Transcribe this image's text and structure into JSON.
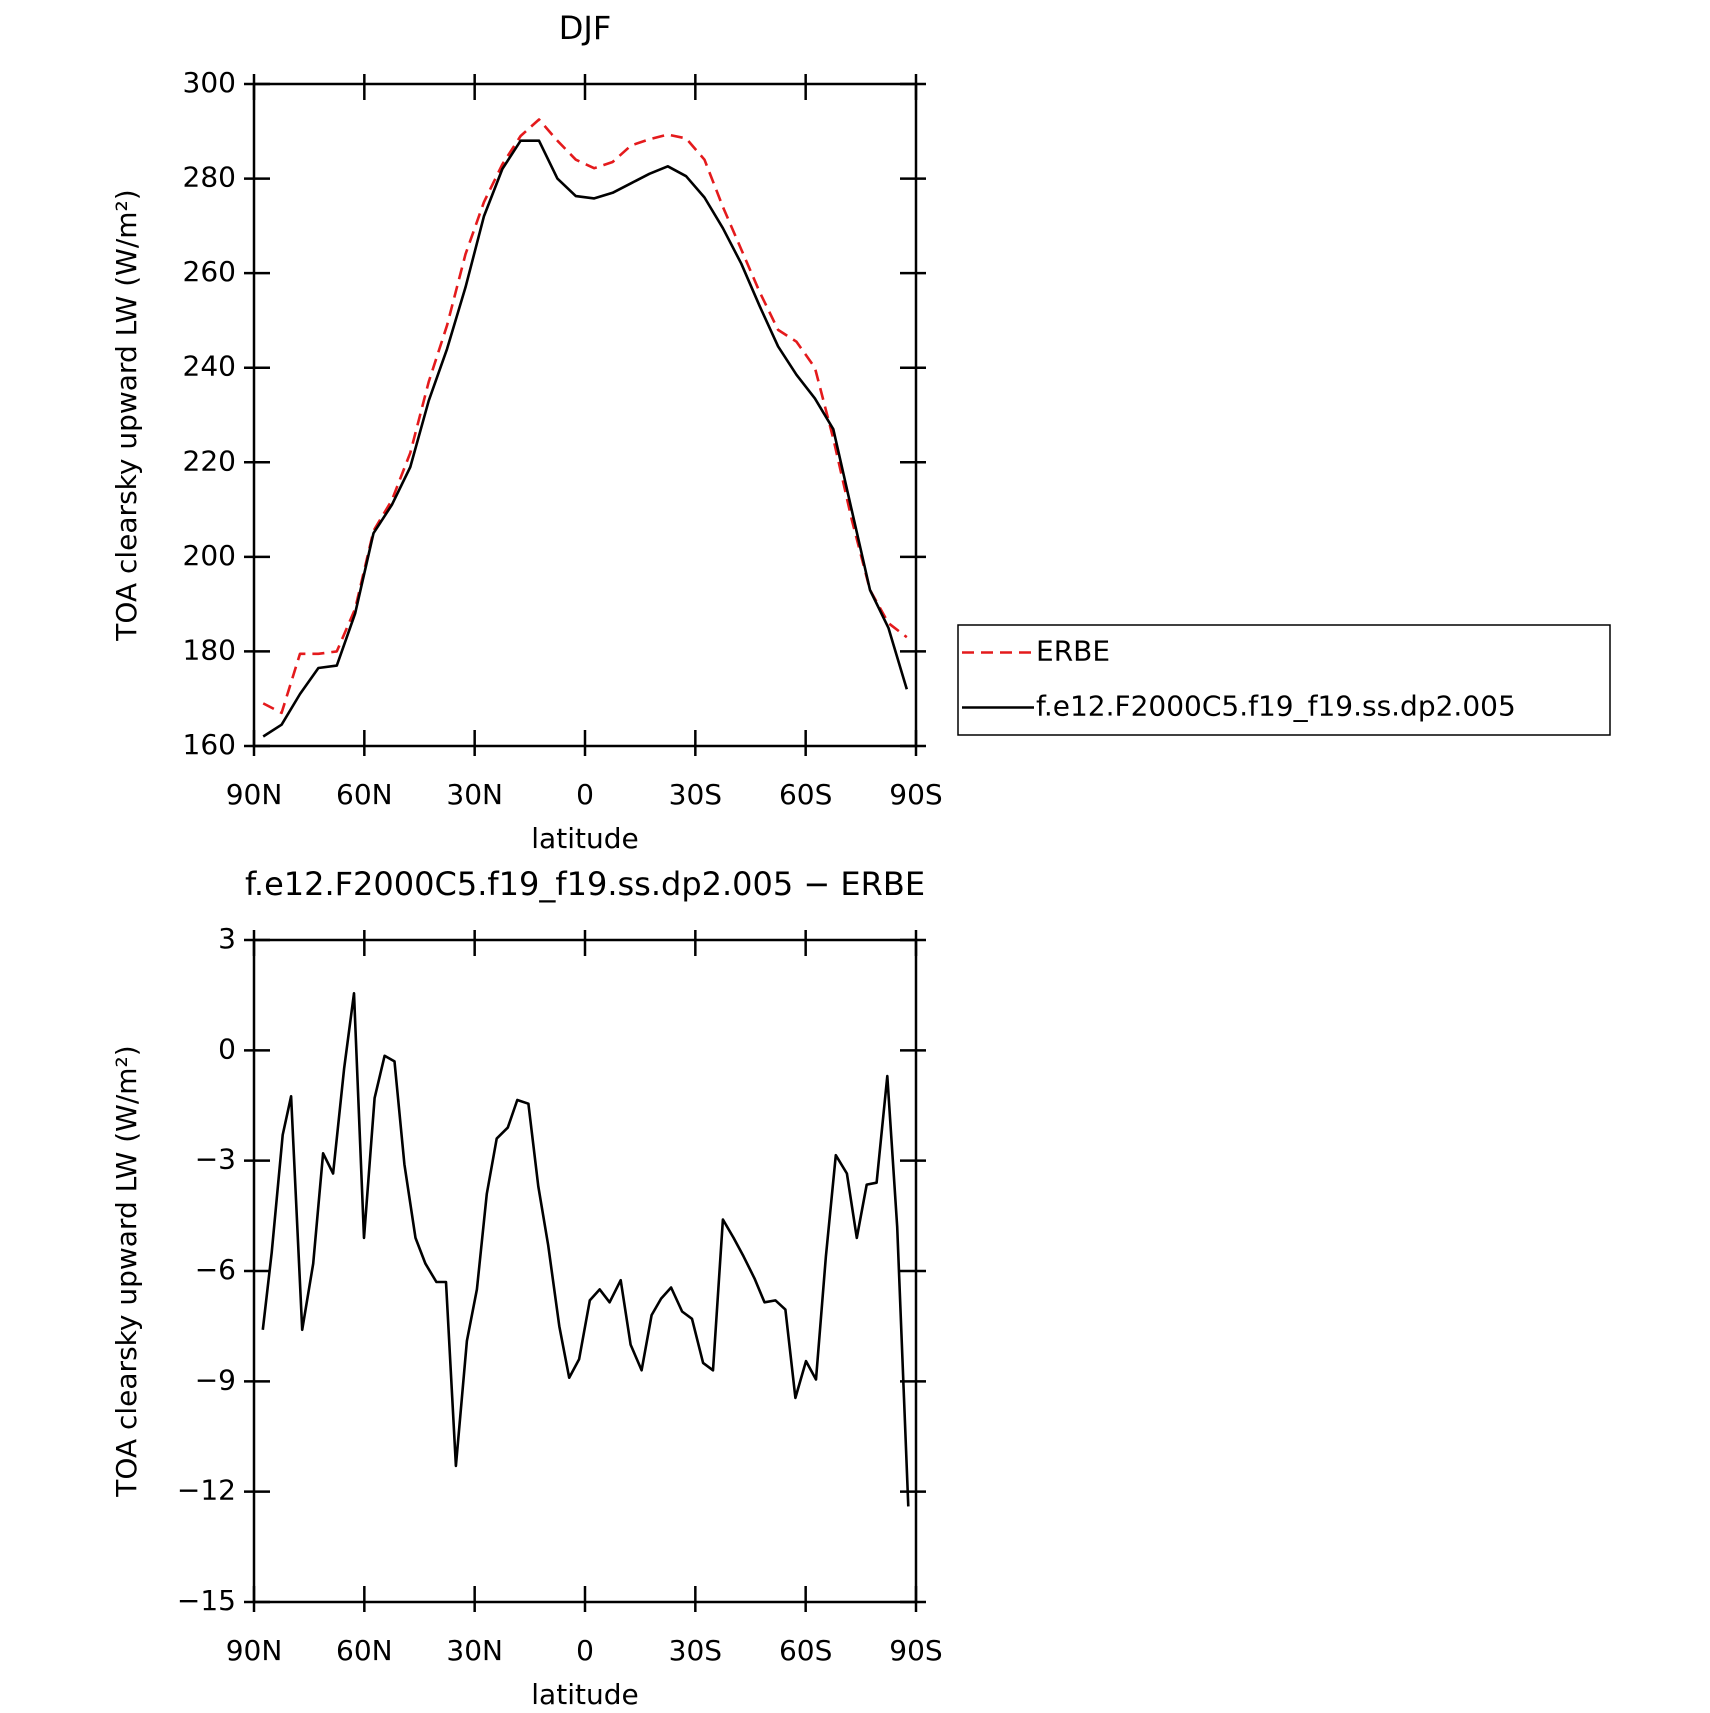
{
  "chart_data": [
    {
      "type": "line",
      "title": "DJF",
      "xlabel": "latitude",
      "ylabel": "TOA clearsky upward LW (W/m²)",
      "x": [
        87.5,
        82.5,
        77.5,
        72.5,
        67.5,
        62.5,
        57.5,
        52.5,
        47.5,
        42.5,
        37.5,
        32.5,
        27.5,
        22.5,
        17.5,
        12.5,
        7.5,
        2.5,
        -2.5,
        -7.5,
        -12.5,
        -17.5,
        -22.5,
        -27.5,
        -32.5,
        -37.5,
        -42.5,
        -47.5,
        -52.5,
        -57.5,
        -62.5,
        -67.5,
        -72.5,
        -77.5,
        -82.5,
        -87.5
      ],
      "series": [
        {
          "name": "ERBE",
          "color": "#e41a1c",
          "style": "dashed",
          "values": [
            169,
            167,
            179.5,
            179.5,
            180,
            189,
            205.5,
            212,
            222,
            237,
            249,
            264,
            275,
            283,
            289,
            292.5,
            288,
            284,
            282.2,
            283.5,
            287,
            288.3,
            289.3,
            288.5,
            284,
            274,
            265,
            256,
            248,
            245.5,
            240,
            225,
            208,
            193,
            186,
            183
          ]
        },
        {
          "name": "f.e12.F2000C5.f19_f19.ss.dp2.005",
          "color": "#000000",
          "style": "solid",
          "values": [
            162,
            164.5,
            171,
            176.5,
            177,
            188,
            205,
            211,
            219,
            233,
            244,
            257,
            272,
            282,
            288,
            288,
            280,
            276.3,
            275.8,
            277,
            279,
            281,
            282.6,
            280.5,
            276,
            269.5,
            262,
            253,
            244.5,
            238.5,
            233.5,
            227,
            210,
            193,
            185,
            172
          ]
        }
      ],
      "xlim": [
        90,
        -90
      ],
      "xticks": [
        {
          "value": 90,
          "label": "90N"
        },
        {
          "value": 60,
          "label": "60N"
        },
        {
          "value": 30,
          "label": "30N"
        },
        0,
        {
          "value": -30,
          "label": "30S"
        },
        {
          "value": -60,
          "label": "60S"
        },
        {
          "value": -90,
          "label": "90S"
        }
      ],
      "ylim": [
        160,
        300
      ],
      "yticks": [
        160,
        180,
        200,
        220,
        240,
        260,
        280,
        300
      ],
      "legend": "right"
    },
    {
      "type": "line",
      "title": "f.e12.F2000C5.f19_f19.ss.dp2.005 − ERBE",
      "xlabel": "latitude",
      "ylabel": "TOA clearsky upward LW (W/m²)",
      "x": [
        87.6,
        85.2,
        82.2,
        79.9,
        76.9,
        73.9,
        71.2,
        68.5,
        65.5,
        62.8,
        60.1,
        57.2,
        54.5,
        51.8,
        49.1,
        46.1,
        43.4,
        40.4,
        37.8,
        35.1,
        32.1,
        29.4,
        26.7,
        24.0,
        21.0,
        18.4,
        15.4,
        12.7,
        10.0,
        7.0,
        4.3,
        1.6,
        -1.3,
        -4.0,
        -6.7,
        -9.7,
        -12.4,
        -15.4,
        -18.1,
        -20.7,
        -23.4,
        -26.4,
        -29.1,
        -32.1,
        -34.8,
        -37.5,
        -40.4,
        -43.1,
        -46.1,
        -48.8,
        -51.8,
        -54.5,
        -57.2,
        -60.1,
        -62.8,
        -65.5,
        -68.2,
        -71.2,
        -73.9,
        -76.6,
        -79.3,
        -82.2,
        -84.9,
        -87.9
      ],
      "series": [
        {
          "name": "f.e12.F2000C5.f19_f19.ss.dp2.005 − ERBE",
          "color": "#000000",
          "style": "solid",
          "values": [
            -7.6,
            -5.5,
            -2.3,
            -1.25,
            -7.6,
            -5.8,
            -2.8,
            -3.35,
            -0.5,
            1.55,
            -5.1,
            -1.3,
            -0.15,
            -0.3,
            -3.1,
            -5.1,
            -5.8,
            -6.3,
            -6.3,
            -11.3,
            -7.9,
            -6.5,
            -3.9,
            -2.4,
            -2.1,
            -1.35,
            -1.45,
            -3.7,
            -5.3,
            -7.5,
            -8.9,
            -8.4,
            -6.8,
            -6.5,
            -6.85,
            -6.25,
            -8.0,
            -8.7,
            -7.2,
            -6.75,
            -6.45,
            -7.1,
            -7.3,
            -8.5,
            -8.7,
            -4.6,
            -5.1,
            -5.6,
            -6.2,
            -6.85,
            -6.8,
            -7.05,
            -9.45,
            -8.45,
            -8.95,
            -5.6,
            -2.85,
            -3.35,
            -5.1,
            -3.65,
            -3.6,
            -0.7,
            -4.8,
            -12.4
          ]
        }
      ],
      "xlim": [
        90,
        -90
      ],
      "xticks": [
        {
          "value": 90,
          "label": "90N"
        },
        {
          "value": 60,
          "label": "60N"
        },
        {
          "value": 30,
          "label": "30N"
        },
        0,
        {
          "value": -30,
          "label": "30S"
        },
        {
          "value": -60,
          "label": "60S"
        },
        {
          "value": -90,
          "label": "90S"
        }
      ],
      "ylim": [
        -15,
        3
      ],
      "yticks": [
        {
          "value": -15,
          "label": "−15"
        },
        {
          "value": -12,
          "label": "−12"
        },
        {
          "value": -9,
          "label": "−9"
        },
        {
          "value": -6,
          "label": "−6"
        },
        {
          "value": -3,
          "label": "−3"
        },
        0,
        3
      ]
    }
  ]
}
